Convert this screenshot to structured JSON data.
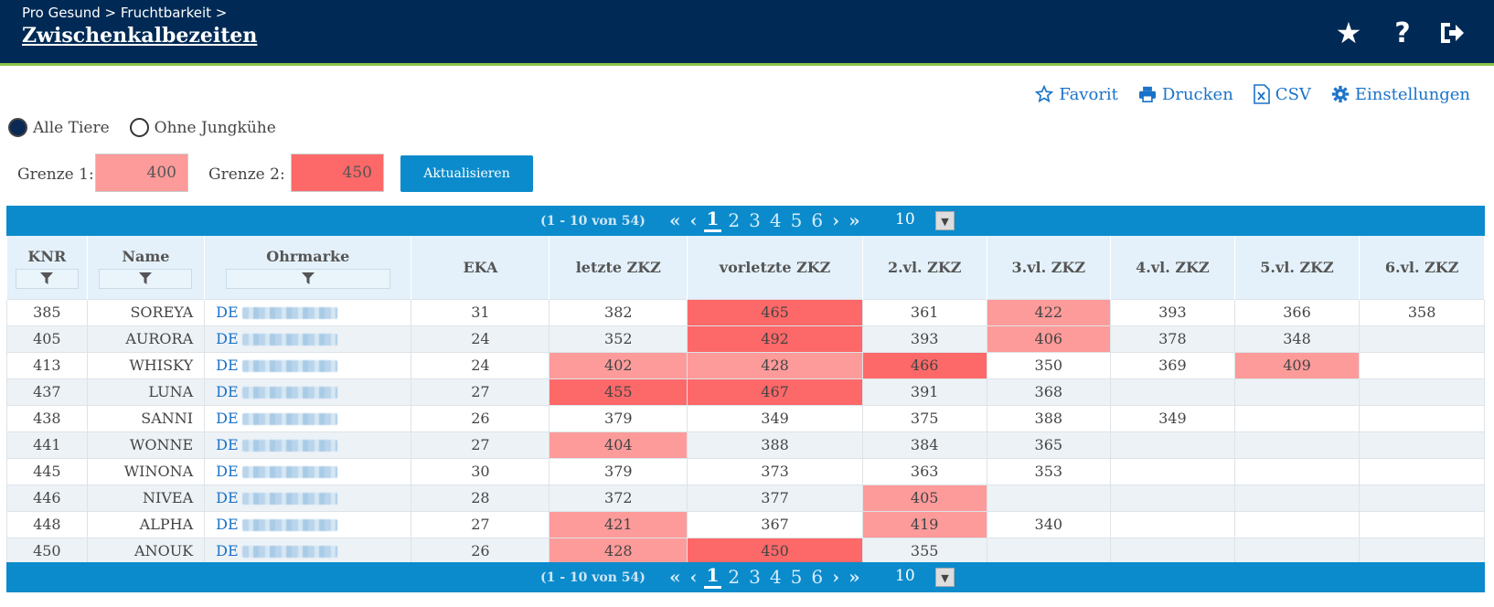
{
  "header": {
    "breadcrumb": "Pro Gesund > Fruchtbarkeit >",
    "title": "Zwischenkalbezeiten",
    "icons": [
      "star-icon",
      "help-icon",
      "logout-icon"
    ]
  },
  "actions": {
    "favorit": "Favorit",
    "drucken": "Drucken",
    "csv": "CSV",
    "einstellungen": "Einstellungen"
  },
  "filters": {
    "alle_tiere": "Alle Tiere",
    "ohne_jungkuehe": "Ohne Jungkühe",
    "selected": "Alle Tiere"
  },
  "limits": {
    "grenze1_label": "Grenze 1:",
    "grenze1_value": "400",
    "grenze2_label": "Grenze 2:",
    "grenze2_value": "450",
    "update_label": "Aktualisieren"
  },
  "colors": {
    "limit1": "#fd9a9a",
    "limit2": "#fd6868",
    "header_bg": "#002a55",
    "pager_bg": "#0b8bcc"
  },
  "pager": {
    "info": "(1 - 10 von 54)",
    "first": "«",
    "prev": "‹",
    "pages": [
      "1",
      "2",
      "3",
      "4",
      "5",
      "6"
    ],
    "active_page": "1",
    "next": "›",
    "last": "»",
    "page_size": "10"
  },
  "table": {
    "columns": [
      "KNR",
      "Name",
      "Ohrmarke",
      "EKA",
      "letzte ZKZ",
      "vorletzte ZKZ",
      "2.vl. ZKZ",
      "3.vl. ZKZ",
      "4.vl. ZKZ",
      "5.vl. ZKZ",
      "6.vl. ZKZ"
    ],
    "rows": [
      {
        "knr": "385",
        "name": "SOREYA",
        "ohr": "DE",
        "eka": "31",
        "z": [
          "382",
          "465",
          "361",
          "422",
          "393",
          "366",
          "358"
        ]
      },
      {
        "knr": "405",
        "name": "AURORA",
        "ohr": "DE",
        "eka": "24",
        "z": [
          "352",
          "492",
          "393",
          "406",
          "378",
          "348",
          ""
        ]
      },
      {
        "knr": "413",
        "name": "WHISKY",
        "ohr": "DE",
        "eka": "24",
        "z": [
          "402",
          "428",
          "466",
          "350",
          "369",
          "409",
          ""
        ]
      },
      {
        "knr": "437",
        "name": "LUNA",
        "ohr": "DE",
        "eka": "27",
        "z": [
          "455",
          "467",
          "391",
          "368",
          "",
          "",
          ""
        ]
      },
      {
        "knr": "438",
        "name": "SANNI",
        "ohr": "DE",
        "eka": "26",
        "z": [
          "379",
          "349",
          "375",
          "388",
          "349",
          "",
          ""
        ]
      },
      {
        "knr": "441",
        "name": "WONNE",
        "ohr": "DE",
        "eka": "27",
        "z": [
          "404",
          "388",
          "384",
          "365",
          "",
          "",
          ""
        ]
      },
      {
        "knr": "445",
        "name": "WINONA",
        "ohr": "DE",
        "eka": "30",
        "z": [
          "379",
          "373",
          "363",
          "353",
          "",
          "",
          ""
        ]
      },
      {
        "knr": "446",
        "name": "NIVEA",
        "ohr": "DE",
        "eka": "28",
        "z": [
          "372",
          "377",
          "405",
          "",
          "",
          "",
          ""
        ]
      },
      {
        "knr": "448",
        "name": "ALPHA",
        "ohr": "DE",
        "eka": "27",
        "z": [
          "421",
          "367",
          "419",
          "340",
          "",
          "",
          ""
        ]
      },
      {
        "knr": "450",
        "name": "ANOUK",
        "ohr": "DE",
        "eka": "26",
        "z": [
          "428",
          "450",
          "355",
          "",
          "",
          "",
          ""
        ]
      }
    ]
  }
}
